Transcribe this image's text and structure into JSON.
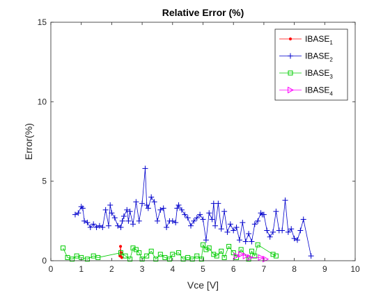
{
  "chart_data": {
    "type": "line",
    "title": "Relative Error (%)",
    "xlabel": "Vce [V]",
    "ylabel": "Error(%)",
    "xlim": [
      0,
      10
    ],
    "ylim": [
      0,
      15
    ],
    "xticks": [
      "0",
      "1",
      "2",
      "3",
      "4",
      "5",
      "6",
      "7",
      "8",
      "9",
      "10"
    ],
    "yticks": [
      "0",
      "5",
      "10",
      "15"
    ],
    "grid": false,
    "legend_position": "top-right",
    "series": [
      {
        "name": "IBASE",
        "subscript": "1",
        "color": "#ff0000",
        "marker": "dot",
        "x": [
          2.27,
          2.29,
          2.31,
          2.33
        ],
        "y": [
          0.3,
          0.9,
          0.5,
          0.2
        ]
      },
      {
        "name": "IBASE",
        "subscript": "2",
        "color": "#0000cc",
        "marker": "plus",
        "x": [
          0.8,
          0.9,
          1.0,
          1.05,
          1.1,
          1.2,
          1.3,
          1.4,
          1.5,
          1.6,
          1.7,
          1.8,
          1.9,
          1.95,
          2.0,
          2.1,
          2.2,
          2.3,
          2.35,
          2.4,
          2.5,
          2.55,
          2.6,
          2.7,
          2.8,
          2.9,
          3.0,
          3.1,
          3.15,
          3.2,
          3.3,
          3.4,
          3.5,
          3.6,
          3.7,
          3.8,
          3.9,
          4.0,
          4.1,
          4.15,
          4.2,
          4.3,
          4.4,
          4.5,
          4.6,
          4.7,
          4.8,
          4.9,
          5.0,
          5.1,
          5.2,
          5.3,
          5.35,
          5.4,
          5.5,
          5.6,
          5.7,
          5.8,
          5.9,
          6.0,
          6.1,
          6.2,
          6.3,
          6.4,
          6.5,
          6.6,
          6.7,
          6.8,
          6.9,
          6.95,
          7.0,
          7.1,
          7.2,
          7.3,
          7.4,
          7.5,
          7.6,
          7.7,
          7.8,
          7.9,
          8.0,
          8.1,
          8.2,
          8.3,
          8.55
        ],
        "y": [
          2.9,
          3.0,
          3.4,
          3.3,
          2.5,
          2.4,
          2.1,
          2.3,
          2.1,
          2.2,
          2.1,
          3.2,
          2.2,
          3.5,
          3.0,
          2.7,
          2.2,
          2.1,
          2.5,
          2.8,
          3.2,
          2.5,
          3.1,
          2.3,
          3.7,
          2.5,
          3.6,
          5.8,
          3.5,
          3.3,
          4.0,
          3.7,
          2.5,
          3.2,
          3.3,
          2.1,
          2.5,
          2.5,
          2.4,
          3.3,
          3.5,
          3.2,
          2.9,
          2.7,
          2.2,
          2.5,
          2.7,
          2.9,
          2.6,
          1.3,
          3.0,
          2.6,
          3.6,
          2.2,
          3.6,
          2.0,
          3.1,
          1.8,
          2.3,
          1.9,
          2.1,
          1.3,
          2.4,
          1.2,
          1.7,
          1.2,
          2.3,
          2.5,
          3.0,
          2.9,
          2.9,
          1.9,
          1.5,
          1.8,
          3.1,
          1.9,
          1.9,
          3.8,
          1.8,
          2.0,
          1.4,
          1.3,
          1.9,
          2.6,
          0.3
        ]
      },
      {
        "name": "IBASE",
        "subscript": "3",
        "color": "#00cc00",
        "marker": "square",
        "x": [
          0.4,
          0.55,
          0.7,
          0.85,
          1.0,
          1.2,
          1.4,
          1.55,
          2.3,
          2.45,
          2.6,
          2.7,
          2.8,
          2.9,
          3.0,
          3.15,
          3.3,
          3.45,
          3.6,
          3.75,
          3.9,
          4.0,
          4.2,
          4.35,
          4.5,
          4.65,
          4.8,
          4.95,
          5.0,
          5.1,
          5.2,
          5.35,
          5.45,
          5.6,
          5.7,
          5.85,
          6.0,
          6.1,
          6.25,
          6.5,
          6.6,
          6.7,
          6.8,
          7.3,
          7.4
        ],
        "y": [
          0.8,
          0.2,
          0.1,
          0.3,
          0.2,
          0.1,
          0.3,
          0.2,
          0.5,
          0.3,
          0.1,
          0.8,
          0.7,
          0.5,
          0.1,
          0.3,
          0.6,
          0.1,
          0.4,
          0.2,
          0.1,
          0.4,
          0.5,
          0.1,
          0.2,
          0.1,
          0.3,
          0.1,
          1.0,
          0.7,
          0.8,
          0.4,
          0.3,
          0.6,
          0.2,
          0.9,
          0.5,
          0.2,
          0.7,
          0.1,
          0.6,
          0.3,
          1.0,
          0.4,
          0.3
        ]
      },
      {
        "name": "IBASE",
        "subscript": "4",
        "color": "#ff00ff",
        "marker": "triangle-right",
        "x": [
          6.1,
          6.25,
          6.4,
          6.55,
          6.9,
          7.05
        ],
        "y": [
          0.3,
          0.4,
          0.3,
          0.2,
          0.2,
          0.1
        ]
      }
    ]
  }
}
